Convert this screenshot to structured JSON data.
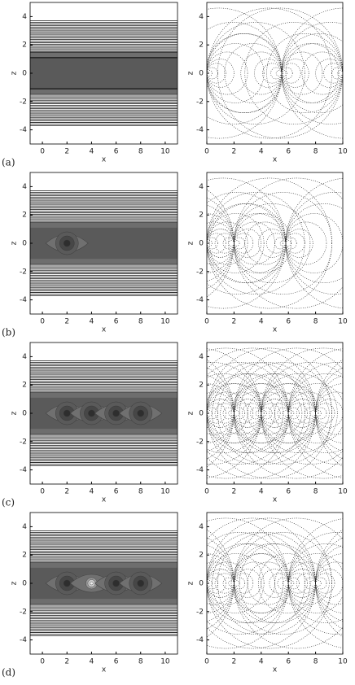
{
  "axes": {
    "left": {
      "xlabel": "x",
      "ylabel": "z",
      "xlim": [
        -1,
        11
      ],
      "ylim": [
        -5,
        5
      ],
      "xticks": [
        0,
        2,
        4,
        6,
        8,
        10
      ],
      "yticks": [
        -4,
        -2,
        0,
        2,
        4
      ]
    },
    "right": {
      "xlabel": "x",
      "ylabel": "z",
      "xlim": [
        0,
        10
      ],
      "ylim": [
        -5,
        5
      ],
      "xticks": [
        0,
        2,
        4,
        6,
        8,
        10
      ],
      "yticks": [
        -4,
        -2,
        0,
        2,
        4
      ]
    }
  },
  "panels": [
    {
      "label": "(a)"
    },
    {
      "label": "(b)"
    },
    {
      "label": "(c)"
    },
    {
      "label": "(d)"
    }
  ]
}
